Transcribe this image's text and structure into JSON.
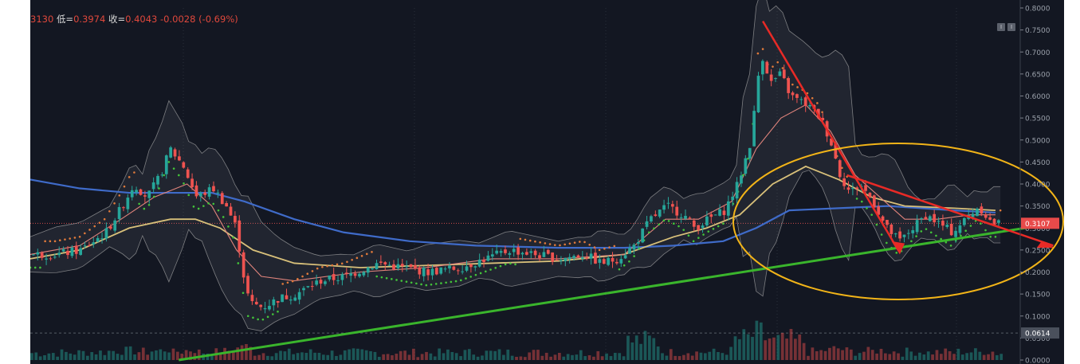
{
  "ohlc": {
    "hi_fragment": "3130",
    "low_label": "低=",
    "low_value": "0.3974",
    "close_label": "收=",
    "close_value": "0.4043",
    "change": "-0.0028 (-0.69%)"
  },
  "toolbar": {
    "btn1": "I",
    "btn2": "I"
  },
  "colors": {
    "background": "#131722",
    "up": "#26a69a",
    "down": "#ef5350",
    "ma_long": "#3f6bc9",
    "ma_mid": "#d8c07a",
    "ma_short": "#e0847c",
    "bollinger": "#a8a8a8",
    "support_line": "#3ab52c",
    "resistance_line": "#e82a26",
    "ellipse": "#f2b418",
    "sar": "#43c43a"
  },
  "chart_data": {
    "type": "candlestick",
    "ylim": [
      0.0,
      0.8
    ],
    "ytick_labels": [
      "0.0000",
      "0.0500",
      "0.1000",
      "0.1500",
      "0.2000",
      "0.2500",
      "0.3000",
      "0.3500",
      "0.4000",
      "0.4500",
      "0.5000",
      "0.5500",
      "0.6000",
      "0.6500",
      "0.7000",
      "0.7500",
      "0.8000"
    ],
    "price_badge": "0.3107",
    "volume_badge": "0.0614",
    "grid": "dotted vertical",
    "price_path": [
      [
        0,
        0.24
      ],
      [
        15,
        0.24
      ],
      [
        30,
        0.25
      ],
      [
        45,
        0.29
      ],
      [
        55,
        0.35
      ],
      [
        62,
        0.4
      ],
      [
        70,
        0.37
      ],
      [
        78,
        0.42
      ],
      [
        84,
        0.48
      ],
      [
        92,
        0.44
      ],
      [
        100,
        0.37
      ],
      [
        110,
        0.39
      ],
      [
        118,
        0.35
      ],
      [
        124,
        0.3
      ],
      [
        128,
        0.2
      ],
      [
        132,
        0.13
      ],
      [
        140,
        0.12
      ],
      [
        150,
        0.14
      ],
      [
        160,
        0.15
      ],
      [
        175,
        0.18
      ],
      [
        190,
        0.19
      ],
      [
        210,
        0.22
      ],
      [
        225,
        0.21
      ],
      [
        240,
        0.2
      ],
      [
        260,
        0.21
      ],
      [
        275,
        0.23
      ],
      [
        290,
        0.25
      ],
      [
        305,
        0.24
      ],
      [
        320,
        0.23
      ],
      [
        335,
        0.24
      ],
      [
        345,
        0.22
      ],
      [
        355,
        0.23
      ],
      [
        365,
        0.26
      ],
      [
        375,
        0.32
      ],
      [
        385,
        0.35
      ],
      [
        395,
        0.33
      ],
      [
        402,
        0.3
      ],
      [
        410,
        0.32
      ],
      [
        420,
        0.34
      ],
      [
        428,
        0.4
      ],
      [
        436,
        0.5
      ],
      [
        442,
        0.7
      ],
      [
        448,
        0.63
      ],
      [
        454,
        0.65
      ],
      [
        460,
        0.6
      ],
      [
        470,
        0.58
      ],
      [
        478,
        0.55
      ],
      [
        484,
        0.5
      ],
      [
        490,
        0.42
      ],
      [
        496,
        0.38
      ],
      [
        502,
        0.4
      ],
      [
        510,
        0.36
      ],
      [
        518,
        0.3
      ],
      [
        526,
        0.27
      ],
      [
        534,
        0.3
      ],
      [
        542,
        0.33
      ],
      [
        550,
        0.31
      ],
      [
        558,
        0.29
      ],
      [
        566,
        0.32
      ],
      [
        574,
        0.35
      ],
      [
        582,
        0.31
      ],
      [
        590,
        0.31
      ]
    ],
    "ma_long_path": [
      [
        0,
        0.41
      ],
      [
        30,
        0.39
      ],
      [
        60,
        0.38
      ],
      [
        90,
        0.38
      ],
      [
        110,
        0.38
      ],
      [
        130,
        0.36
      ],
      [
        160,
        0.32
      ],
      [
        190,
        0.29
      ],
      [
        230,
        0.27
      ],
      [
        270,
        0.26
      ],
      [
        320,
        0.255
      ],
      [
        360,
        0.255
      ],
      [
        390,
        0.26
      ],
      [
        420,
        0.27
      ],
      [
        440,
        0.3
      ],
      [
        460,
        0.34
      ],
      [
        490,
        0.345
      ],
      [
        520,
        0.35
      ],
      [
        560,
        0.34
      ],
      [
        585,
        0.335
      ]
    ],
    "ma_mid_path": [
      [
        0,
        0.23
      ],
      [
        30,
        0.25
      ],
      [
        60,
        0.3
      ],
      [
        85,
        0.32
      ],
      [
        100,
        0.32
      ],
      [
        115,
        0.3
      ],
      [
        135,
        0.25
      ],
      [
        160,
        0.22
      ],
      [
        200,
        0.21
      ],
      [
        240,
        0.215
      ],
      [
        280,
        0.22
      ],
      [
        320,
        0.225
      ],
      [
        360,
        0.24
      ],
      [
        390,
        0.28
      ],
      [
        410,
        0.3
      ],
      [
        430,
        0.33
      ],
      [
        450,
        0.4
      ],
      [
        470,
        0.44
      ],
      [
        490,
        0.41
      ],
      [
        510,
        0.37
      ],
      [
        530,
        0.35
      ],
      [
        560,
        0.345
      ],
      [
        585,
        0.34
      ]
    ],
    "ma_short_path": [
      [
        0,
        0.24
      ],
      [
        30,
        0.26
      ],
      [
        55,
        0.32
      ],
      [
        75,
        0.37
      ],
      [
        95,
        0.4
      ],
      [
        110,
        0.35
      ],
      [
        125,
        0.25
      ],
      [
        140,
        0.19
      ],
      [
        160,
        0.18
      ],
      [
        200,
        0.2
      ],
      [
        240,
        0.21
      ],
      [
        280,
        0.23
      ],
      [
        320,
        0.23
      ],
      [
        360,
        0.24
      ],
      [
        385,
        0.32
      ],
      [
        405,
        0.32
      ],
      [
        425,
        0.36
      ],
      [
        440,
        0.48
      ],
      [
        455,
        0.55
      ],
      [
        470,
        0.58
      ],
      [
        485,
        0.52
      ],
      [
        500,
        0.42
      ],
      [
        515,
        0.37
      ],
      [
        530,
        0.32
      ],
      [
        550,
        0.32
      ],
      [
        570,
        0.33
      ],
      [
        585,
        0.33
      ]
    ],
    "trend_lines": [
      {
        "name": "support",
        "from": [
          90,
          0.0
        ],
        "to": [
          620,
          0.31
        ]
      },
      {
        "name": "resistance-1",
        "from": [
          444,
          0.77
        ],
        "to": [
          526,
          0.25
        ]
      },
      {
        "name": "resistance-2",
        "from": [
          495,
          0.42
        ],
        "to": [
          620,
          0.26
        ]
      }
    ]
  }
}
